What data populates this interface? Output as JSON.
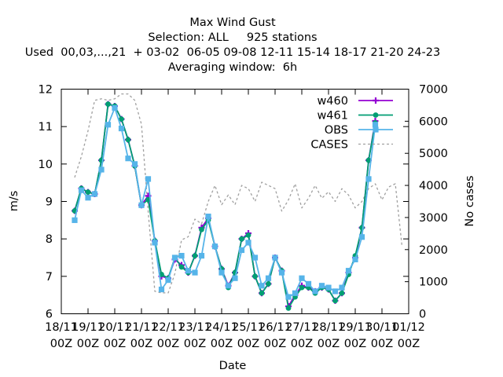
{
  "chart_data": {
    "type": "line",
    "title_lines": [
      "Max Wind Gust",
      "Selection: ALL     925 stations",
      "Used  00,03,...,21  + 03-02  06-05 09-08 12-11 15-14 18-17 21-20 24-23",
      "Averaging window:  6h"
    ],
    "xlabel": "Date",
    "ylabel": "m/s",
    "y2label": "No cases",
    "ylim": [
      6,
      12
    ],
    "y2lim": [
      0,
      7000
    ],
    "yticks": [
      6,
      7,
      8,
      9,
      10,
      11,
      12
    ],
    "y2ticks": [
      0,
      1000,
      2000,
      3000,
      4000,
      5000,
      6000,
      7000
    ],
    "xlim": [
      "2018-11-18T00",
      "2018-12-01T00"
    ],
    "xticks": [
      {
        "line1": "18/11",
        "line2": "00Z"
      },
      {
        "line1": "19/11",
        "line2": "00Z"
      },
      {
        "line1": "20/11",
        "line2": "00Z"
      },
      {
        "line1": "21/11",
        "line2": "00Z"
      },
      {
        "line1": "22/11",
        "line2": "00Z"
      },
      {
        "line1": "23/11",
        "line2": "00Z"
      },
      {
        "line1": "24/11",
        "line2": "00Z"
      },
      {
        "line1": "25/11",
        "line2": "00Z"
      },
      {
        "line1": "26/11",
        "line2": "00Z"
      },
      {
        "line1": "27/11",
        "line2": "00Z"
      },
      {
        "line1": "28/11",
        "line2": "00Z"
      },
      {
        "line1": "29/11",
        "line2": "00Z"
      },
      {
        "line1": "30/11",
        "line2": "00Z"
      },
      {
        "line1": "01/12",
        "line2": "00Z"
      }
    ],
    "legend_position": "top-right",
    "grid": false,
    "x_hours_since_18_11_00Z": [
      12,
      18,
      24,
      30,
      36,
      42,
      48,
      54,
      60,
      66,
      72,
      78,
      84,
      90,
      96,
      102,
      108,
      114,
      120,
      126,
      132,
      138,
      144,
      150,
      156,
      162,
      168,
      174,
      180,
      186,
      192,
      198,
      204,
      210,
      216,
      222,
      228,
      234,
      240,
      246,
      252,
      258,
      264,
      270,
      276,
      282,
      288,
      294,
      300,
      306
    ],
    "series": [
      {
        "name": "w460",
        "color": "#9400d3",
        "marker": "plus",
        "axis": "left",
        "values": [
          8.75,
          9.35,
          9.25,
          9.2,
          10.1,
          11.6,
          11.55,
          11.2,
          10.65,
          9.95,
          8.9,
          9.15,
          7.95,
          7.0,
          6.95,
          7.45,
          7.3,
          7.1,
          7.55,
          8.3,
          8.55,
          7.8,
          7.2,
          6.75,
          7.1,
          8.0,
          8.15,
          7.0,
          6.55,
          6.8,
          7.5,
          7.15,
          6.2,
          6.5,
          6.75,
          6.7,
          6.6,
          6.7,
          6.65,
          6.35,
          6.55,
          7.1,
          7.5,
          8.3,
          10.1,
          11.15,
          null,
          null,
          null,
          null
        ]
      },
      {
        "name": "w461",
        "color": "#009e73",
        "marker": "filled-circle",
        "axis": "left",
        "values": [
          8.75,
          9.35,
          9.25,
          9.2,
          10.1,
          11.6,
          11.55,
          11.2,
          10.65,
          9.95,
          8.9,
          9.05,
          7.95,
          7.05,
          6.95,
          7.5,
          7.25,
          7.1,
          7.55,
          8.25,
          8.5,
          7.8,
          7.2,
          6.7,
          7.1,
          8.0,
          8.1,
          7.0,
          6.55,
          6.8,
          7.5,
          7.15,
          6.15,
          6.45,
          6.7,
          6.7,
          6.55,
          6.7,
          6.65,
          6.35,
          6.55,
          7.05,
          7.55,
          8.3,
          10.1,
          11.1,
          null,
          null,
          null,
          null
        ]
      },
      {
        "name": "OBS",
        "color": "#56b4e9",
        "marker": "filled-square",
        "axis": "left",
        "values": [
          8.5,
          9.3,
          9.1,
          9.2,
          9.85,
          11.05,
          11.5,
          10.95,
          10.15,
          10.0,
          8.9,
          9.6,
          7.9,
          6.65,
          6.9,
          7.5,
          7.55,
          7.15,
          7.1,
          7.55,
          8.6,
          7.8,
          7.1,
          6.75,
          6.95,
          7.7,
          7.9,
          7.5,
          6.75,
          6.95,
          7.5,
          7.1,
          6.45,
          6.55,
          6.95,
          6.8,
          6.6,
          6.75,
          6.7,
          6.6,
          6.7,
          7.15,
          7.45,
          8.05,
          9.6,
          11.05,
          null,
          null,
          null,
          null
        ]
      },
      {
        "name": "CASES",
        "color": "#a0a0a0",
        "marker": "none",
        "dash": "3,3",
        "axis": "right",
        "values": [
          4250,
          4900,
          5700,
          6650,
          6700,
          6650,
          6700,
          6850,
          6850,
          6650,
          5900,
          3200,
          700,
          650,
          650,
          1250,
          2300,
          2400,
          2950,
          2800,
          3500,
          4000,
          3400,
          3700,
          3400,
          4000,
          3900,
          3500,
          4100,
          4000,
          3900,
          3200,
          3550,
          4050,
          3300,
          3600,
          4000,
          3600,
          3800,
          3500,
          3900,
          3700,
          3300,
          3500,
          3900,
          4050,
          3550,
          3950,
          4050,
          2100
        ]
      }
    ]
  }
}
